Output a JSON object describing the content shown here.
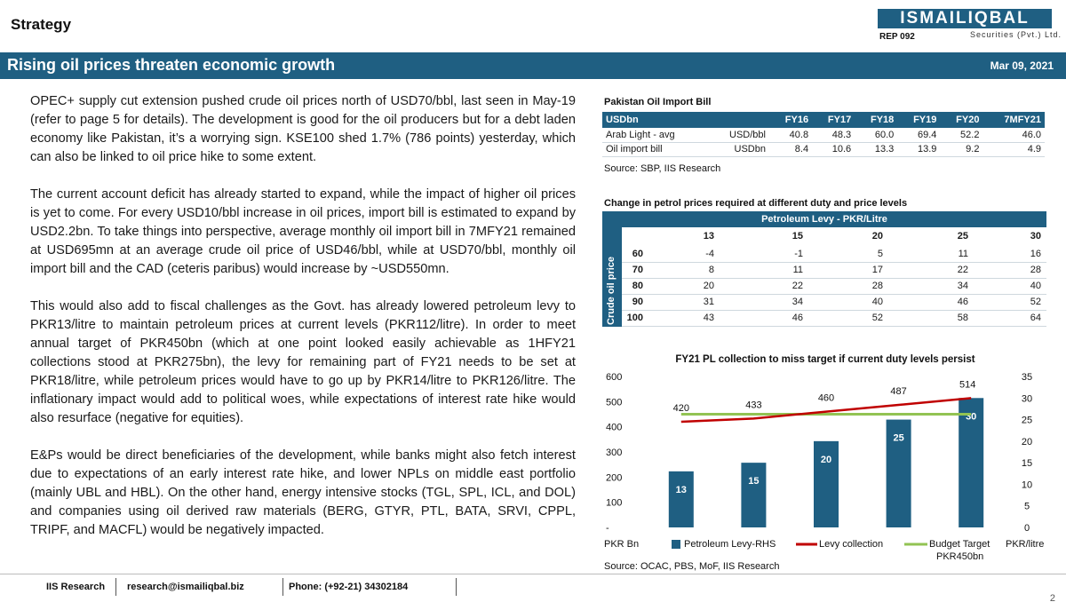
{
  "header": {
    "section": "Strategy",
    "logo_text": "ISMAILIQBAL",
    "logo_sub": "Securities (Pvt.) Ltd.",
    "rep_code": "REP 092",
    "title": "Rising oil prices threaten economic growth",
    "date": "Mar 09, 2021",
    "brand_color": "#1f5f82"
  },
  "body": {
    "paragraphs": [
      "OPEC+ supply cut extension pushed crude oil prices north of USD70/bbl, last seen in May-19 (refer to page 5 for details). The development is good for the oil producers but for a debt laden economy like Pakistan, it’s a worrying sign. KSE100 shed 1.7% (786 points) yesterday, which can also be linked to oil price hike to some extent.",
      "The current account deficit has already started to expand, while the impact of higher oil prices is yet to come. For every USD10/bbl increase in oil prices, import bill is estimated to expand by USD2.2bn. To take things into perspective, average monthly oil import bill in 7MFY21 remained at USD695mn at an average crude oil price of USD46/bbl, while at USD70/bbl, monthly oil import bill and the CAD (ceteris paribus) would increase by ~USD550mn.",
      "This would also add to fiscal challenges as the Govt. has already lowered petroleum levy to PKR13/litre to maintain petroleum prices at current levels (PKR112/litre). In order to meet annual target of PKR450bn (which at one point looked easily achievable as 1HFY21 collections stood at PKR275bn), the levy for remaining part of FY21 needs to be set at PKR18/litre, while petroleum prices would have to go up by PKR14/litre to PKR126/litre. The inflationary impact would add to political woes, while expectations of interest rate hike would also resurface (negative for equities).",
      "E&Ps would be direct beneficiaries of the development, while banks might also fetch interest due to expectations of an early interest rate hike, and lower NPLs on middle east portfolio (mainly UBL and HBL). On the other hand, energy intensive stocks (TGL, SPL, ICL, and DOL) and companies using oil derived raw materials (BERG, GTYR, PTL, BATA, SRVI, CPPL, TRIPF, and MACFL) would be negatively impacted."
    ]
  },
  "import_table": {
    "title": "Pakistan Oil Import Bill",
    "headers": [
      "USDbn",
      "",
      "FY16",
      "FY17",
      "FY18",
      "FY19",
      "FY20",
      "7MFY21"
    ],
    "rows": [
      [
        "Arab Light - avg",
        "USD/bbl",
        "40.8",
        "48.3",
        "60.0",
        "69.4",
        "52.2",
        "46.0"
      ],
      [
        "Oil import bill",
        "USDbn",
        "8.4",
        "10.6",
        "13.3",
        "13.9",
        "9.2",
        "4.9"
      ]
    ],
    "source": "Source: SBP, IIS Research"
  },
  "petrol_table": {
    "title": "Change in petrol prices required at different duty and price levels",
    "band": "Petroleum Levy - PKR/Litre",
    "side_label": "Crude oil price",
    "levy_cols": [
      "13",
      "15",
      "20",
      "25",
      "30"
    ],
    "rows": [
      {
        "price": "60",
        "values": [
          "-4",
          "-1",
          "5",
          "11",
          "16"
        ]
      },
      {
        "price": "70",
        "values": [
          "8",
          "11",
          "17",
          "22",
          "28"
        ]
      },
      {
        "price": "80",
        "values": [
          "20",
          "22",
          "28",
          "34",
          "40"
        ]
      },
      {
        "price": "90",
        "values": [
          "31",
          "34",
          "40",
          "46",
          "52"
        ]
      },
      {
        "price": "100",
        "values": [
          "43",
          "46",
          "52",
          "58",
          "64"
        ]
      }
    ]
  },
  "chart_data": {
    "type": "bar",
    "title": "FY21 PL collection to miss target if current duty levels persist",
    "ylabel": "PKR Bn",
    "y2label": "PKR/litre",
    "ylim": [
      0,
      600
    ],
    "y2lim": [
      0,
      35
    ],
    "yticks": [
      "600",
      "500",
      "400",
      "300",
      "200",
      "100",
      "-"
    ],
    "y2ticks": [
      "35",
      "30",
      "25",
      "20",
      "15",
      "10",
      "5",
      "0"
    ],
    "categories": [
      "13",
      "15",
      "20",
      "25",
      "30"
    ],
    "series": [
      {
        "name": "Petroleum Levy-RHS",
        "kind": "bar",
        "axis": "right",
        "values": [
          13,
          15,
          20,
          25,
          30
        ],
        "color": "#1f5f82"
      },
      {
        "name": "Levy collection",
        "kind": "line",
        "axis": "left",
        "values": [
          420,
          433,
          460,
          487,
          514
        ],
        "color": "#c00000"
      },
      {
        "name": "Budget Target PKR450bn",
        "kind": "line",
        "axis": "left",
        "values": [
          450,
          450,
          450,
          450,
          450
        ],
        "color": "#92c353"
      }
    ],
    "line_labels": [
      "420",
      "433",
      "460",
      "487",
      "514"
    ],
    "bar_labels": [
      "13",
      "15",
      "20",
      "25",
      "30"
    ],
    "legend": [
      "Petroleum Levy-RHS",
      "Levy collection",
      "Budget Target",
      "PKR450bn"
    ],
    "source": "Source: OCAC, PBS, MoF, IIS Research"
  },
  "footer": {
    "research": "IIS Research",
    "email": "research@ismailiqbal.biz",
    "phone": "Phone: (+92-21) 34302184",
    "page": "2"
  }
}
